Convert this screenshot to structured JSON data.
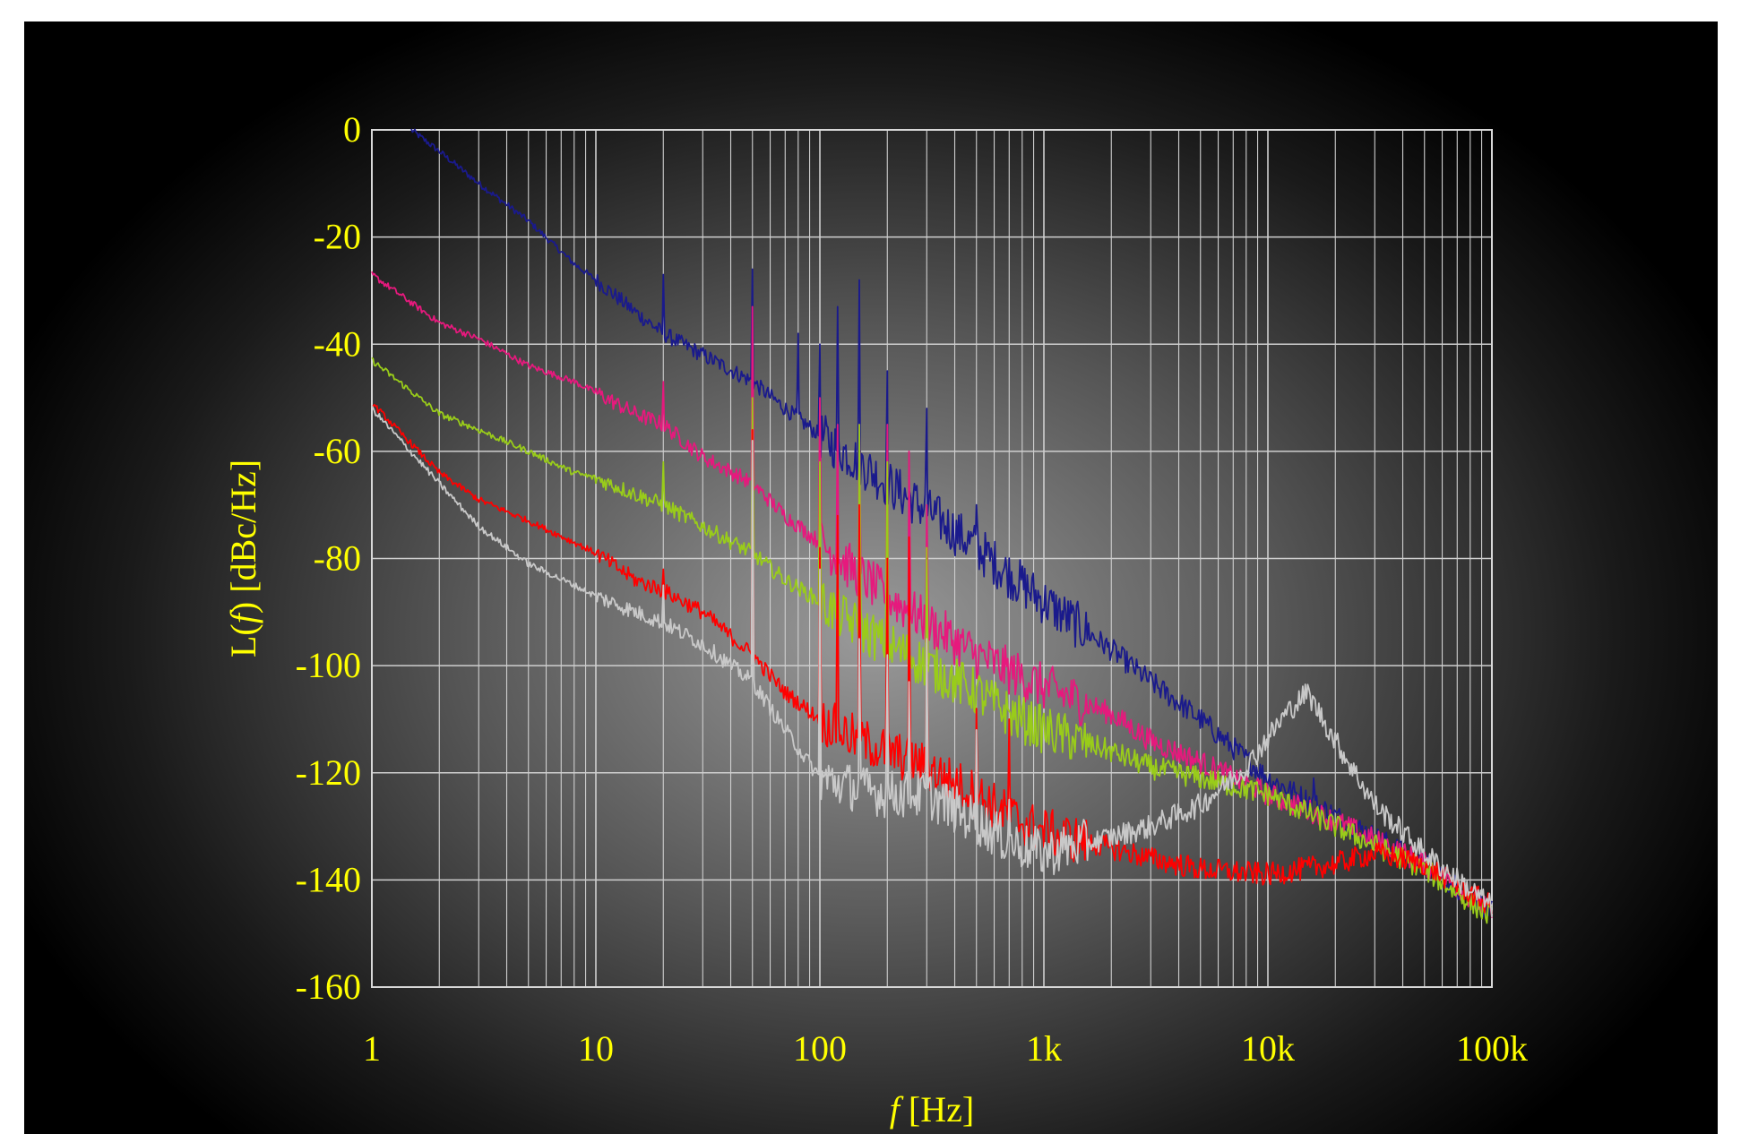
{
  "chart_data": {
    "type": "line",
    "title": "",
    "xlabel": "f [Hz]",
    "xlabel_italic_part": "f",
    "xlabel_unit": " [Hz]",
    "ylabel": "L(f) [dBc/Hz]",
    "ylabel_prefix": "L(",
    "ylabel_italic_part": "f",
    "ylabel_suffix": ") [dBc/Hz]",
    "x_scale": "log",
    "xlim": [
      1,
      100000
    ],
    "ylim": [
      -160,
      0
    ],
    "grid": true,
    "legend": "none",
    "x_ticks": [
      {
        "value": 1,
        "label": "1"
      },
      {
        "value": 10,
        "label": "10"
      },
      {
        "value": 100,
        "label": "100"
      },
      {
        "value": 1000,
        "label": "1k"
      },
      {
        "value": 10000,
        "label": "10k"
      },
      {
        "value": 100000,
        "label": "100k"
      }
    ],
    "y_ticks": [
      {
        "value": 0,
        "label": "0"
      },
      {
        "value": -20,
        "label": "-20"
      },
      {
        "value": -40,
        "label": "-40"
      },
      {
        "value": -60,
        "label": "-60"
      },
      {
        "value": -80,
        "label": "-80"
      },
      {
        "value": -100,
        "label": "-100"
      },
      {
        "value": -120,
        "label": "-120"
      },
      {
        "value": -140,
        "label": "-140"
      },
      {
        "value": -160,
        "label": "-160"
      }
    ],
    "series": [
      {
        "color": "#1a1a8c",
        "x": [
          1.5,
          2,
          3,
          5,
          8,
          10,
          15,
          20,
          30,
          50,
          70,
          100,
          150,
          200,
          300,
          500,
          700,
          1000,
          2000,
          3000,
          5000,
          10000,
          20000,
          50000,
          100000
        ],
        "y": [
          0,
          -4,
          -10,
          -17,
          -25,
          -28,
          -34,
          -38,
          -42,
          -47,
          -52,
          -57,
          -62,
          -66,
          -71,
          -78,
          -83,
          -88,
          -97,
          -103,
          -110,
          -121,
          -128,
          -137,
          -146
        ],
        "spikes": [
          [
            20,
            -27
          ],
          [
            50,
            -26
          ],
          [
            60,
            -50
          ],
          [
            80,
            -38
          ],
          [
            100,
            -40
          ],
          [
            120,
            -33
          ],
          [
            150,
            -28
          ],
          [
            200,
            -45
          ],
          [
            300,
            -52
          ],
          [
            500,
            -70
          ],
          [
            16000,
            -121
          ]
        ]
      },
      {
        "color": "#e6197d",
        "x": [
          1,
          2,
          3,
          5,
          8,
          10,
          15,
          20,
          30,
          50,
          70,
          100,
          150,
          200,
          300,
          500,
          700,
          1000,
          2000,
          3000,
          5000,
          10000,
          20000,
          50000,
          100000
        ],
        "y": [
          -27,
          -36,
          -39,
          -44,
          -47,
          -49,
          -53,
          -55,
          -61,
          -66,
          -72,
          -77,
          -83,
          -87,
          -92,
          -98,
          -101,
          -104,
          -109,
          -114,
          -118,
          -124,
          -129,
          -137,
          -146
        ],
        "spikes": [
          [
            20,
            -47
          ],
          [
            50,
            -33
          ],
          [
            100,
            -50
          ],
          [
            120,
            -55
          ],
          [
            150,
            -55
          ],
          [
            200,
            -55
          ],
          [
            250,
            -60
          ],
          [
            300,
            -70
          ]
        ]
      },
      {
        "color": "#99cc1a",
        "x": [
          1,
          2,
          3,
          5,
          8,
          10,
          15,
          20,
          30,
          50,
          70,
          100,
          150,
          200,
          300,
          500,
          700,
          1000,
          2000,
          3000,
          5000,
          10000,
          20000,
          50000,
          100000
        ],
        "y": [
          -43,
          -53,
          -56,
          -60,
          -64,
          -65,
          -68,
          -70,
          -74,
          -79,
          -84,
          -88,
          -93,
          -96,
          -100,
          -105,
          -109,
          -112,
          -116,
          -119,
          -121,
          -124,
          -130,
          -138,
          -147
        ],
        "spikes": [
          [
            20,
            -62
          ],
          [
            50,
            -50
          ],
          [
            100,
            -62
          ],
          [
            150,
            -55
          ],
          [
            200,
            -62
          ],
          [
            300,
            -78
          ]
        ]
      },
      {
        "color": "#ff0000",
        "x": [
          1,
          2,
          3,
          5,
          8,
          10,
          15,
          20,
          30,
          50,
          70,
          100,
          150,
          200,
          300,
          500,
          700,
          1000,
          2000,
          3000,
          5000,
          10000,
          20000,
          30000,
          50000,
          100000
        ],
        "y": [
          -51,
          -64,
          -69,
          -73,
          -77,
          -79,
          -84,
          -86,
          -90,
          -98,
          -105,
          -110,
          -114,
          -116,
          -119,
          -124,
          -128,
          -131,
          -134,
          -136,
          -138,
          -139,
          -137,
          -135,
          -137,
          -145
        ],
        "spikes": [
          [
            20,
            -82
          ],
          [
            50,
            -56
          ],
          [
            100,
            -78
          ],
          [
            120,
            -72
          ],
          [
            150,
            -70
          ],
          [
            200,
            -80
          ],
          [
            250,
            -76
          ],
          [
            300,
            -95
          ],
          [
            500,
            -108
          ],
          [
            700,
            -110
          ]
        ]
      },
      {
        "color": "#c8c8c8",
        "x": [
          1,
          2,
          3,
          5,
          8,
          10,
          15,
          20,
          30,
          50,
          70,
          100,
          150,
          200,
          300,
          500,
          700,
          1000,
          2000,
          3000,
          5000,
          8000,
          12000,
          15000,
          20000,
          30000,
          50000,
          100000
        ],
        "y": [
          -52,
          -66,
          -74,
          -81,
          -85,
          -87,
          -90,
          -92,
          -96,
          -103,
          -112,
          -121,
          -123,
          -124,
          -124,
          -129,
          -133,
          -135,
          -132,
          -130,
          -126,
          -119,
          -109,
          -105,
          -114,
          -126,
          -135,
          -145
        ],
        "spikes": [
          [
            20,
            -85
          ],
          [
            50,
            -58
          ],
          [
            100,
            -82
          ],
          [
            150,
            -95
          ],
          [
            200,
            -98
          ],
          [
            250,
            -103
          ],
          [
            300,
            -95
          ],
          [
            500,
            -112
          ],
          [
            700,
            -125
          ]
        ]
      }
    ]
  }
}
